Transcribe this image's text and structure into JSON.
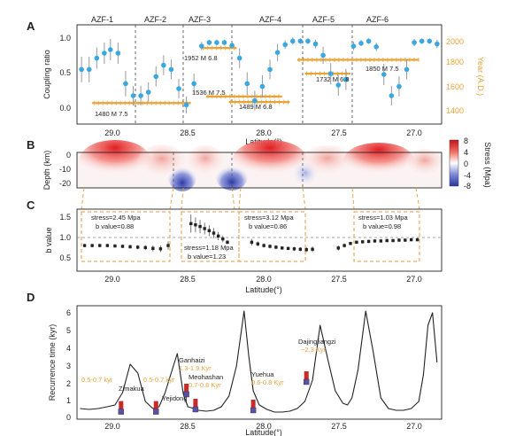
{
  "chart_data": [
    {
      "panel": "A",
      "type": "scatter",
      "xlabel": "Latitude(°)",
      "ylabel": "Coupling ratio",
      "y2label": "Year (A.D.)",
      "xlim": [
        29.3,
        26.9
      ],
      "ylim": [
        -0.15,
        1.25
      ],
      "y2lim": [
        1300,
        2150
      ],
      "xticks": [
        "29.0",
        "28.5",
        "28.0",
        "27.5",
        "27.0"
      ],
      "yticks": [
        "0.0",
        "0.5",
        "1.0"
      ],
      "y2ticks": [
        "1400",
        "1600",
        "1800",
        "2000"
      ],
      "zones": [
        "AZF-1",
        "AZF-2",
        "AZF-3",
        "AZF-4",
        "AZF-5",
        "AZF-6"
      ],
      "series": [
        {
          "x": [
            29.27,
            29.22,
            29.17,
            29.12,
            29.08,
            29.03,
            28.98,
            28.93,
            28.88,
            28.83,
            28.78,
            28.73,
            28.68,
            28.63,
            28.58,
            28.53,
            28.48,
            28.43,
            28.38,
            28.33,
            28.28,
            28.23,
            28.18,
            28.13,
            28.08,
            28.03,
            27.98,
            27.93,
            27.88,
            27.83,
            27.78,
            27.73,
            27.68,
            27.63,
            27.58,
            27.53,
            27.48,
            27.43,
            27.38,
            27.33,
            27.28,
            27.23,
            27.18,
            27.13,
            27.08,
            27.03,
            26.98,
            26.93
          ],
          "y": [
            0.62,
            0.62,
            0.78,
            0.85,
            0.9,
            0.85,
            0.42,
            0.25,
            0.25,
            0.3,
            0.52,
            0.68,
            0.62,
            0.35,
            0.12,
            0.42,
            0.95,
            1.0,
            1.0,
            1.0,
            0.96,
            0.78,
            0.42,
            0.18,
            0.38,
            0.62,
            0.86,
            0.97,
            1.02,
            1.02,
            1.02,
            0.98,
            0.82,
            0.56,
            0.4,
            0.48,
            0.95,
            0.99,
            1.02,
            0.94,
            0.55,
            0.25,
            0.38,
            0.62,
            1.0,
            1.02,
            1.02,
            0.98
          ],
          "err": [
            0.18,
            0.18,
            0.15,
            0.15,
            0.15,
            0.15,
            0.18,
            0.14,
            0.14,
            0.14,
            0.14,
            0.14,
            0.14,
            0.14,
            0.12,
            0.14,
            0.06,
            0.04,
            0.04,
            0.04,
            0.05,
            0.14,
            0.16,
            0.14,
            0.16,
            0.14,
            0.12,
            0.06,
            0.05,
            0.04,
            0.04,
            0.06,
            0.12,
            0.15,
            0.15,
            0.15,
            0.06,
            0.04,
            0.04,
            0.06,
            0.15,
            0.14,
            0.14,
            0.14,
            0.05,
            0.04,
            0.04,
            0.06
          ]
        }
      ],
      "events": [
        {
          "label": "1480  M 7.5",
          "year": 1480,
          "x_start": 29.2,
          "x_end": 28.55
        },
        {
          "label": "1952  M 6.8",
          "year": 1952,
          "x_start": 28.48,
          "x_end": 28.25
        },
        {
          "label": "1536  M 7.5",
          "year": 1536,
          "x_start": 28.45,
          "x_end": 27.95
        },
        {
          "label": "1489  M 6.8",
          "year": 1489,
          "x_start": 28.3,
          "x_end": 27.9
        },
        {
          "label": "1732  M 6.8",
          "year": 1732,
          "x_start": 27.8,
          "x_end": 27.5
        },
        {
          "label": "1850  M 7.5",
          "year": 1850,
          "x_start": 27.85,
          "x_end": 27.05
        }
      ]
    },
    {
      "panel": "B",
      "type": "heatmap",
      "xlabel": "Latitude(°)",
      "ylabel": "Depth (km)",
      "colorbar_label": "Stress (Mpa)",
      "yticks": [
        "0",
        "-10",
        "-20"
      ],
      "colorbar_ticks": [
        "8",
        "4",
        "0",
        "-4",
        "-8"
      ],
      "colorbar_range": [
        -8,
        8
      ],
      "colors": {
        "high": "#d7191c",
        "zero": "#ffffff",
        "low": "#2c3ea8"
      }
    },
    {
      "panel": "C",
      "type": "scatter",
      "xlabel": "Latitude(°)",
      "ylabel": "b value",
      "xlim": [
        29.3,
        26.9
      ],
      "ylim": [
        0.3,
        1.8
      ],
      "yticks": [
        "0.5",
        "1.0",
        "1.5"
      ],
      "xticks": [
        "29.0",
        "28.5",
        "28.0",
        "27.5",
        "27.0"
      ],
      "reference_line": 1.0,
      "groups": [
        {
          "stress_text": "stress=2.45 Mpa",
          "b_text": "b value=0.88",
          "x_start": 29.27,
          "x_end": 28.65
        },
        {
          "stress_text": "stress=1.18 Mpa",
          "b_text": "b value=1.23",
          "x_start": 28.6,
          "x_end": 28.28
        },
        {
          "stress_text": "stress=3.12 Mpa",
          "b_text": "b value=0.86",
          "x_start": 28.2,
          "x_end": 27.72
        },
        {
          "stress_text": "stress=1.03 Mpa",
          "b_text": "b value=0.98",
          "x_start": 27.6,
          "x_end": 27.02
        }
      ],
      "series": [
        {
          "x": [
            29.25,
            29.2,
            29.15,
            29.1,
            29.05,
            29.0,
            28.95,
            28.9,
            28.85,
            28.8,
            28.75,
            28.7,
            28.55,
            28.52,
            28.49,
            28.46,
            28.43,
            28.4,
            28.37,
            28.34,
            28.31,
            28.15,
            28.11,
            28.07,
            28.03,
            27.99,
            27.95,
            27.91,
            27.87,
            27.83,
            27.79,
            27.75,
            27.58,
            27.54,
            27.5,
            27.46,
            27.42,
            27.38,
            27.34,
            27.3,
            27.26,
            27.22,
            27.18,
            27.14,
            27.1,
            27.06
          ],
          "y": [
            0.92,
            0.92,
            0.92,
            0.92,
            0.91,
            0.9,
            0.89,
            0.88,
            0.87,
            0.85,
            0.84,
            0.92,
            1.45,
            1.42,
            1.38,
            1.33,
            1.28,
            1.22,
            1.15,
            1.08,
            1.0,
            1.0,
            0.96,
            0.92,
            0.9,
            0.88,
            0.86,
            0.85,
            0.84,
            0.83,
            0.82,
            0.83,
            0.86,
            0.92,
            0.97,
            1.0,
            1.01,
            1.02,
            1.03,
            1.03,
            1.04,
            1.04,
            1.05,
            1.05,
            1.06,
            1.06
          ],
          "err": [
            0.04,
            0.04,
            0.04,
            0.04,
            0.04,
            0.04,
            0.05,
            0.05,
            0.06,
            0.07,
            0.08,
            0.1,
            0.22,
            0.18,
            0.16,
            0.14,
            0.13,
            0.12,
            0.1,
            0.08,
            0.05,
            0.08,
            0.06,
            0.05,
            0.05,
            0.05,
            0.04,
            0.04,
            0.05,
            0.05,
            0.06,
            0.07,
            0.06,
            0.05,
            0.04,
            0.04,
            0.04,
            0.04,
            0.04,
            0.04,
            0.04,
            0.04,
            0.04,
            0.04,
            0.04,
            0.04
          ]
        }
      ]
    },
    {
      "panel": "D",
      "type": "line",
      "xlabel": "Latitude(°)",
      "ylabel": "Recurrence time (kyr)",
      "xlim": [
        29.3,
        26.9
      ],
      "ylim": [
        0,
        6.4
      ],
      "yticks": [
        "0",
        "1",
        "2",
        "3",
        "4",
        "5",
        "6"
      ],
      "xticks": [
        "29.0",
        "28.5",
        "28.0",
        "27.5",
        "27.0"
      ],
      "series": [
        {
          "x": [
            29.28,
            29.22,
            29.16,
            29.1,
            29.05,
            29.0,
            28.95,
            28.9,
            28.85,
            28.8,
            28.76,
            28.72,
            28.68,
            28.64,
            28.6,
            28.57,
            28.53,
            28.5,
            28.45,
            28.4,
            28.35,
            28.3,
            28.25,
            28.2,
            28.17,
            28.14,
            28.1,
            28.05,
            28.0,
            27.95,
            27.9,
            27.85,
            27.8,
            27.75,
            27.7,
            27.65,
            27.6,
            27.55,
            27.52,
            27.49,
            27.45,
            27.4,
            27.35,
            27.3,
            27.25,
            27.2,
            27.15,
            27.1,
            27.05,
            27.02,
            26.99,
            26.96,
            26.93
          ],
          "y": [
            0.6,
            0.55,
            0.6,
            0.7,
            0.8,
            1.5,
            3.1,
            2.6,
            1.0,
            0.6,
            0.7,
            1.5,
            2.6,
            3.7,
            1.4,
            0.7,
            0.6,
            0.5,
            0.45,
            0.5,
            0.7,
            1.3,
            3.0,
            6.1,
            3.6,
            1.6,
            0.8,
            0.55,
            0.4,
            0.4,
            0.45,
            0.6,
            1.0,
            2.2,
            5.3,
            3.4,
            1.6,
            0.9,
            0.8,
            1.2,
            2.8,
            6.1,
            3.8,
            1.2,
            0.6,
            0.5,
            0.5,
            0.6,
            1.0,
            2.5,
            5.3,
            6.0,
            3.2
          ]
        }
      ],
      "sites": [
        {
          "name": "Zimakua",
          "range": "0.5-0.7 kyr",
          "x": 29.01,
          "y": 0.62
        },
        {
          "name": "Yejidong",
          "range": "0.5-0.7 kyr",
          "x": 28.78,
          "y": 0.62
        },
        {
          "name": "Ganhaizi",
          "range": "1.3-1.9 Kyr",
          "x": 28.58,
          "y": 1.6
        },
        {
          "name": "Meohashan",
          "range": "0.7-0.8 Kyr",
          "x": 28.52,
          "y": 0.75
        },
        {
          "name": "Yuehua",
          "range": "0.6-0.8 Kyr",
          "x": 28.14,
          "y": 0.7
        },
        {
          "name": "Dajingliangzi",
          "range": "~2.3 Kyr",
          "x": 27.79,
          "y": 2.3
        }
      ]
    }
  ],
  "panel_labels": [
    "A",
    "B",
    "C",
    "D"
  ],
  "colors": {
    "accent": "#e8a33a",
    "points": "#39a8e0",
    "bars": "#999999",
    "dash": "#e39a42",
    "marker": "#c92b2b",
    "site_marker": "#5b4fa8"
  }
}
